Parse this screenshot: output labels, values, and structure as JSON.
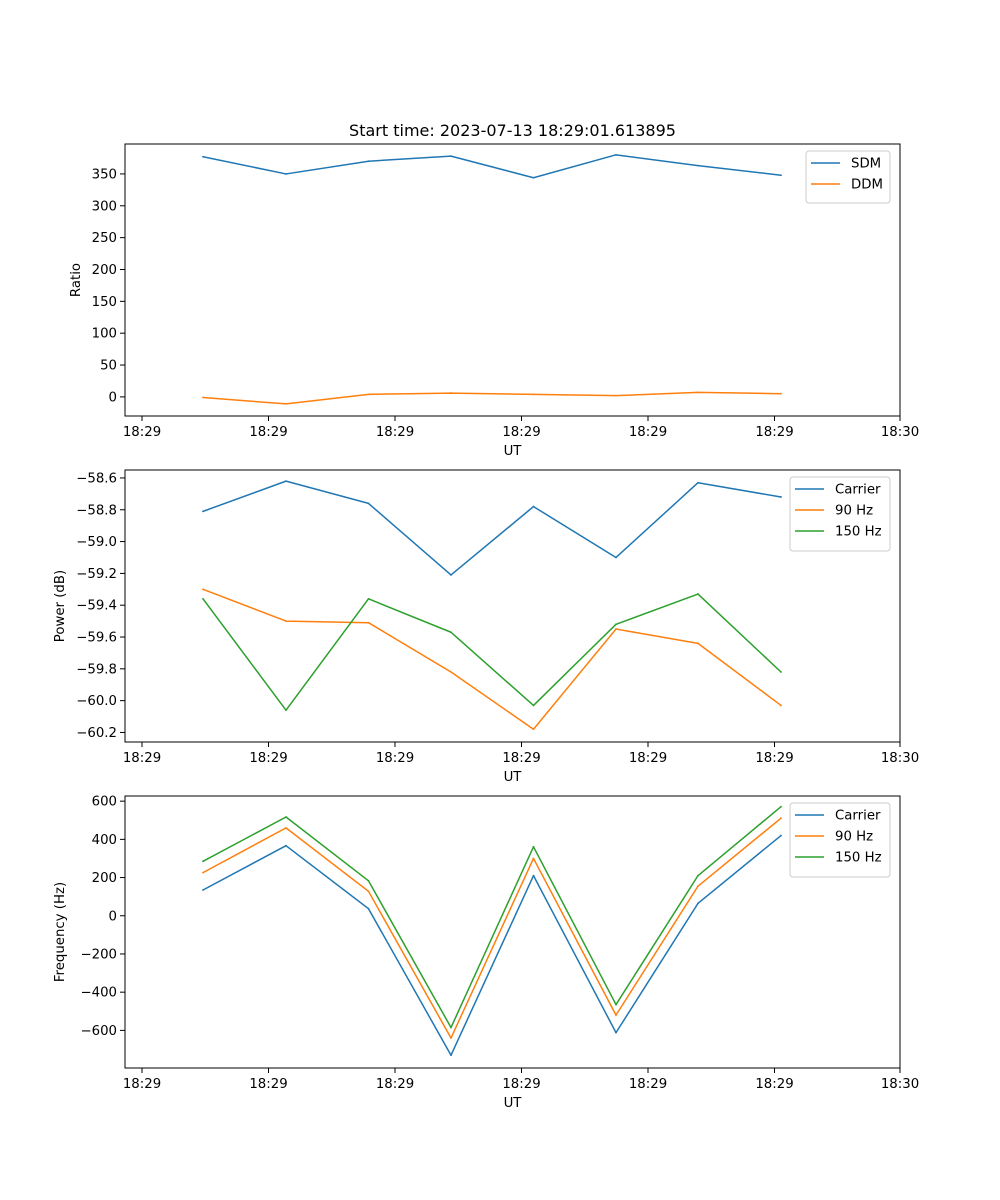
{
  "figure_title": "Start time: 2023-07-13 18:29:01.613895",
  "chart_data": [
    {
      "type": "line",
      "xlabel": "UT",
      "ylabel": "Ratio",
      "x_ticks": [
        "18:29",
        "18:29",
        "18:29",
        "18:29",
        "18:29",
        "18:29",
        "18:30"
      ],
      "ylim": [
        -30,
        397
      ],
      "y_ticks": [
        0,
        50,
        100,
        150,
        200,
        250,
        300,
        350
      ],
      "y_tick_labels": [
        "0",
        "50",
        "100",
        "150",
        "200",
        "250",
        "300",
        "350"
      ],
      "legend_position": "top-right",
      "series": [
        {
          "name": "SDM",
          "color": "#1f77b4",
          "values": [
            377,
            350,
            370,
            378,
            344,
            380,
            363,
            348
          ]
        },
        {
          "name": "DDM",
          "color": "#ff7f0e",
          "values": [
            -1,
            -11,
            4,
            6,
            4,
            2,
            7,
            5
          ]
        }
      ]
    },
    {
      "type": "line",
      "xlabel": "UT",
      "ylabel": "Power (dB)",
      "x_ticks": [
        "18:29",
        "18:29",
        "18:29",
        "18:29",
        "18:29",
        "18:29",
        "18:30"
      ],
      "ylim": [
        -60.26,
        -58.55
      ],
      "y_ticks": [
        -60.2,
        -60.0,
        -59.8,
        -59.6,
        -59.4,
        -59.2,
        -59.0,
        -58.8,
        -58.6
      ],
      "y_tick_labels": [
        "−60.2",
        "−60.0",
        "−59.8",
        "−59.6",
        "−59.4",
        "−59.2",
        "−59.0",
        "−58.8",
        "−58.6"
      ],
      "legend_position": "top-right",
      "series": [
        {
          "name": "Carrier",
          "color": "#1f77b4",
          "values": [
            -58.81,
            -58.62,
            -58.76,
            -59.21,
            -58.78,
            -59.1,
            -58.63,
            -58.72
          ]
        },
        {
          "name": "90 Hz",
          "color": "#ff7f0e",
          "values": [
            -59.3,
            -59.5,
            -59.51,
            -59.82,
            -60.18,
            -59.55,
            -59.64,
            -60.03
          ]
        },
        {
          "name": "150 Hz",
          "color": "#2ca02c",
          "values": [
            -59.36,
            -60.06,
            -59.36,
            -59.57,
            -60.03,
            -59.52,
            -59.33,
            -59.82
          ]
        }
      ]
    },
    {
      "type": "line",
      "xlabel": "UT",
      "ylabel": "Frequency (Hz)",
      "x_ticks": [
        "18:29",
        "18:29",
        "18:29",
        "18:29",
        "18:29",
        "18:29",
        "18:30"
      ],
      "ylim": [
        -797,
        627
      ],
      "y_ticks": [
        -600,
        -400,
        -200,
        0,
        200,
        400,
        600
      ],
      "y_tick_labels": [
        "−600",
        "−400",
        "−200",
        "0",
        "200",
        "400",
        "600"
      ],
      "legend_position": "top-right",
      "series": [
        {
          "name": "Carrier",
          "color": "#1f77b4",
          "values": [
            135,
            367,
            37,
            -730,
            210,
            -612,
            65,
            420
          ]
        },
        {
          "name": "90 Hz",
          "color": "#ff7f0e",
          "values": [
            226,
            460,
            128,
            -640,
            300,
            -520,
            155,
            511
          ]
        },
        {
          "name": "150 Hz",
          "color": "#2ca02c",
          "values": [
            285,
            517,
            183,
            -585,
            361,
            -465,
            210,
            571
          ]
        }
      ]
    }
  ]
}
